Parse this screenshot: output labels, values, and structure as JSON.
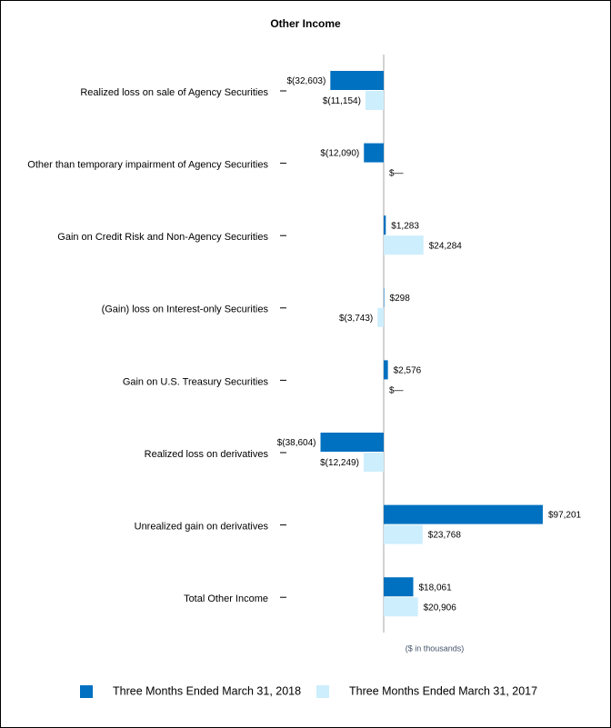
{
  "chart_data": {
    "type": "bar",
    "orientation": "horizontal",
    "title": "Other Income",
    "annotation": "($ in thousands)",
    "categories": [
      "Realized loss on sale of Agency Securities",
      "Other than temporary impairment of Agency Securities",
      "Gain on Credit Risk and Non-Agency Securities",
      "(Gain) loss on Interest-only Securities",
      "Gain on U.S. Treasury Securities",
      "Realized loss on derivatives",
      "Unrealized gain on derivatives",
      "Total Other Income"
    ],
    "series": [
      {
        "name": "Three Months Ended March 31, 2018",
        "color": "#0070c0",
        "values": [
          -32603,
          -12090,
          1283,
          298,
          2576,
          -38604,
          97201,
          18061
        ],
        "value_labels": [
          "$(32,603)",
          "$(12,090)",
          "$1,283",
          "$298",
          "$2,576",
          "$(38,604)",
          "$97,201",
          "$18,061"
        ]
      },
      {
        "name": "Three Months Ended March 31, 2017",
        "color": "#cdeefc",
        "values": [
          -11154,
          0,
          24284,
          -3743,
          0,
          -12249,
          23768,
          20906
        ],
        "value_labels": [
          "$(11,154)",
          "$—",
          "$24,284",
          "$(3,743)",
          "$—",
          "$(12,249)",
          "$23,768",
          "$20,906"
        ]
      }
    ]
  }
}
